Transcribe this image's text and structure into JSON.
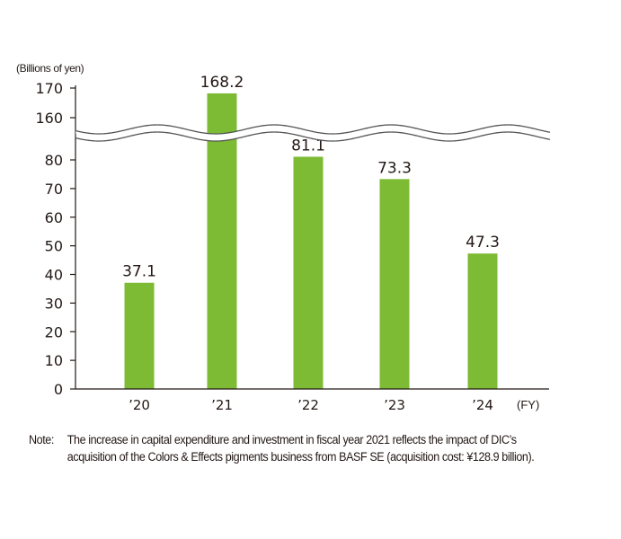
{
  "chart_data": {
    "type": "bar",
    "ylabel": "(Billions of yen)",
    "xlabel": "(FY)",
    "categories": [
      "’20",
      "’21",
      "’22",
      "’23",
      "’24"
    ],
    "values": [
      37.1,
      168.2,
      81.1,
      73.3,
      47.3
    ],
    "value_labels": [
      "37.1",
      "168.2",
      "81.1",
      "73.3",
      "47.3"
    ],
    "lower_ticks": [
      0,
      10,
      20,
      30,
      40,
      50,
      60,
      70,
      80
    ],
    "upper_ticks": [
      160,
      170
    ],
    "ylim_lower": [
      0,
      80
    ],
    "ylim_upper": [
      160,
      170
    ],
    "axis_break": true,
    "grid": false,
    "bar_color": "#7dbb34"
  },
  "note": {
    "label": "Note:",
    "line1": "The increase in capital expenditure and investment in fiscal year 2021 reflects the impact of DIC’s",
    "line2": "acquisition of the Colors & Effects pigments business from BASF SE (acquisition cost: ¥128.9 billion)."
  }
}
